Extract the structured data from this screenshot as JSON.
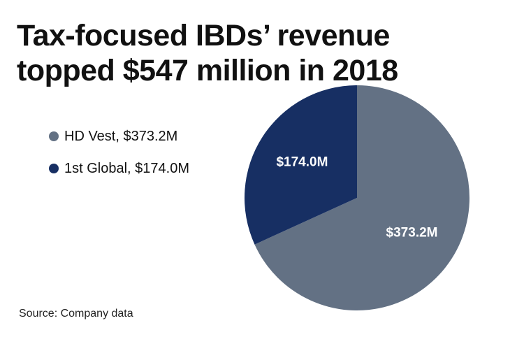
{
  "chart_data": {
    "type": "pie",
    "title": [
      "Tax-focused IBDs’ revenue",
      "topped $547 million in 2018"
    ],
    "slices": [
      {
        "name": "HD Vest",
        "value": 373.2,
        "legend": "HD Vest, $373.2M",
        "data_label": "$373.2M",
        "color": "#637184"
      },
      {
        "name": "1st Global",
        "value": 174.0,
        "legend": "1st Global, $174.0M",
        "data_label": "$174.0M",
        "color": "#172f63"
      }
    ],
    "legend_position": "left",
    "source": "Source: Company data"
  }
}
